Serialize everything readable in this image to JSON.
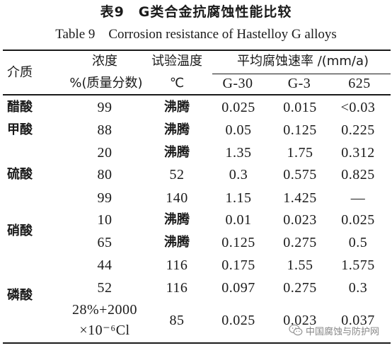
{
  "title_cn": "表9　G类合金抗腐蚀性能比较",
  "title_en": "Table 9　Corrosion resistance of Hastelloy G alloys",
  "header": {
    "medium": "介质",
    "concentration_line1": "浓度",
    "concentration_line2": "%(质量分数)",
    "temperature_line1": "试验温度",
    "temperature_line2": "℃",
    "rate_group": "平均腐蚀速率 /(mm/a)",
    "alloys": [
      "G-30",
      "G-3",
      "625"
    ]
  },
  "media": [
    "醋酸",
    "甲酸",
    "硫酸",
    "硝酸",
    "磷酸"
  ],
  "rows": [
    {
      "conc": "99",
      "temp": "沸腾",
      "g30": "0.025",
      "g3": "0.015",
      "a625": "<0.03"
    },
    {
      "conc": "88",
      "temp": "沸腾",
      "g30": "0.05",
      "g3": "0.125",
      "a625": "0.225"
    },
    {
      "conc": "20",
      "temp": "沸腾",
      "g30": "1.35",
      "g3": "1.75",
      "a625": "0.312"
    },
    {
      "conc": "80",
      "temp": "52",
      "g30": "0.3",
      "g3": "0.575",
      "a625": "0.825"
    },
    {
      "conc": "99",
      "temp": "140",
      "g30": "1.15",
      "g3": "1.425",
      "a625": "—"
    },
    {
      "conc": "10",
      "temp": "沸腾",
      "g30": "0.01",
      "g3": "0.023",
      "a625": "0.025"
    },
    {
      "conc": "65",
      "temp": "沸腾",
      "g30": "0.125",
      "g3": "0.275",
      "a625": "0.5"
    },
    {
      "conc": "44",
      "temp": "116",
      "g30": "0.175",
      "g3": "1.55",
      "a625": "1.575"
    },
    {
      "conc": "52",
      "temp": "116",
      "g30": "0.097",
      "g3": "0.275",
      "a625": "0.3"
    },
    {
      "conc_line1": "28%+2000",
      "conc_line2": "×10⁻⁶Cl",
      "temp": "85",
      "g30": "0.025",
      "g3": "0.023",
      "a625": "0.037"
    }
  ],
  "watermark": {
    "icon": "wechat-icon",
    "text": "中国腐蚀与防护网"
  }
}
